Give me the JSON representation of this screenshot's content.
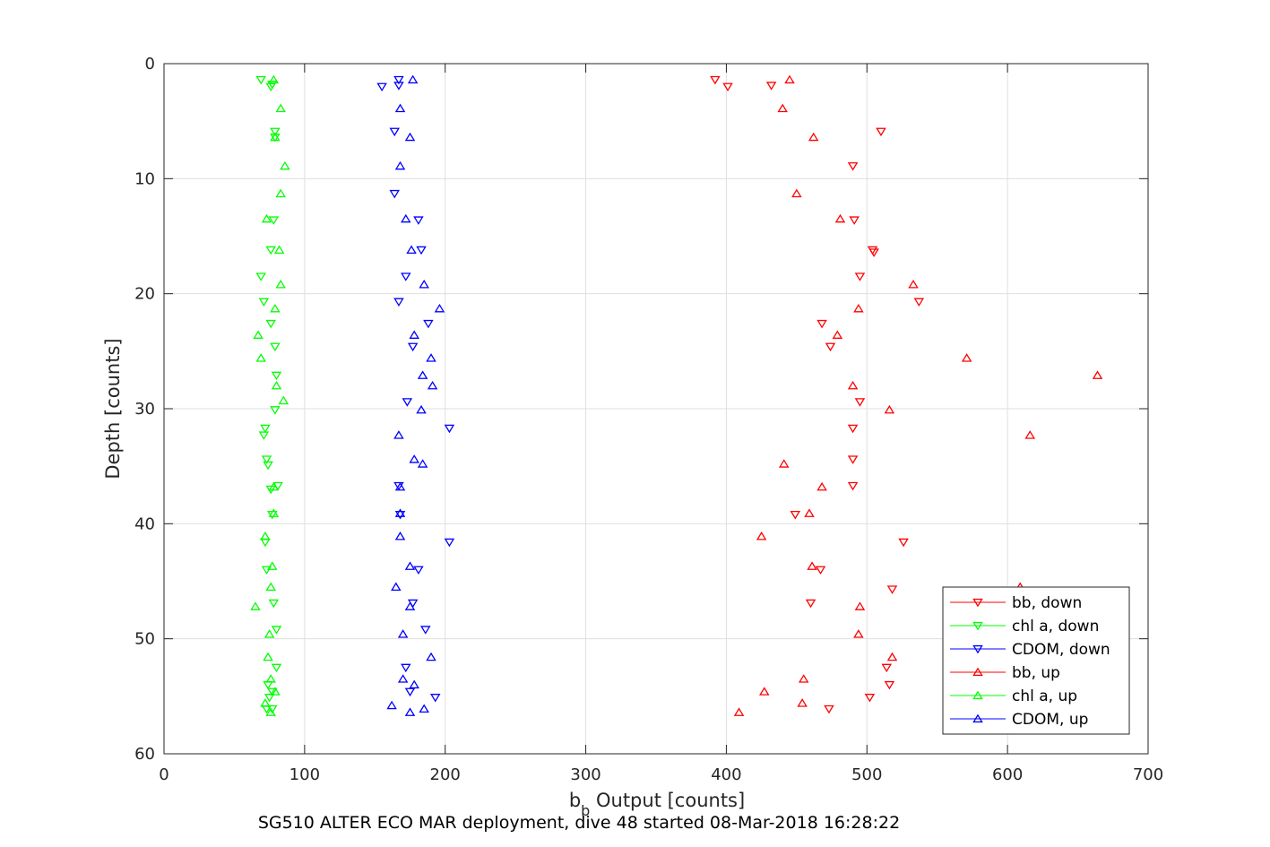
{
  "chart_data": {
    "type": "scatter",
    "xlabel_main": "b",
    "xlabel_sub": "b",
    "xlabel_rest": " Output [counts]",
    "ylabel": "Depth [counts]",
    "footer": "SG510 ALTER ECO MAR deployment, dive 48 started 08-Mar-2018 16:28:22",
    "xlim": [
      0,
      700
    ],
    "ylim": [
      0,
      60
    ],
    "y_reversed": true,
    "grid": true,
    "legend_position": "bottom-right",
    "x_ticks": [
      0,
      100,
      200,
      300,
      400,
      500,
      600,
      700
    ],
    "y_ticks": [
      0,
      10,
      20,
      30,
      40,
      50,
      60
    ],
    "series": [
      {
        "name": "bb, down",
        "color": "#ff0000",
        "marker": "triangle-down",
        "points": [
          [
            392,
            1.4
          ],
          [
            401,
            2.0
          ],
          [
            432,
            1.9
          ],
          [
            510,
            5.9
          ],
          [
            490,
            8.9
          ],
          [
            491,
            13.6
          ],
          [
            504,
            16.2
          ],
          [
            505,
            16.4
          ],
          [
            495,
            18.5
          ],
          [
            537,
            20.7
          ],
          [
            468,
            22.6
          ],
          [
            474,
            24.6
          ],
          [
            495,
            29.4
          ],
          [
            490,
            31.7
          ],
          [
            490,
            34.4
          ],
          [
            490,
            36.7
          ],
          [
            449,
            39.2
          ],
          [
            526,
            41.6
          ],
          [
            467,
            44.0
          ],
          [
            460,
            46.9
          ],
          [
            518,
            45.7
          ],
          [
            514,
            52.5
          ],
          [
            516,
            54.0
          ],
          [
            502,
            55.1
          ],
          [
            473,
            56.1
          ]
        ]
      },
      {
        "name": "chl a, down",
        "color": "#00ff00",
        "marker": "triangle-down",
        "points": [
          [
            69,
            1.4
          ],
          [
            76,
            2.0
          ],
          [
            77,
            1.8
          ],
          [
            79,
            5.9
          ],
          [
            79,
            6.4
          ],
          [
            78,
            13.6
          ],
          [
            76,
            16.2
          ],
          [
            69,
            18.5
          ],
          [
            71,
            20.7
          ],
          [
            76,
            22.6
          ],
          [
            79,
            24.6
          ],
          [
            80,
            27.1
          ],
          [
            79,
            30.1
          ],
          [
            72,
            31.7
          ],
          [
            71,
            32.3
          ],
          [
            73,
            34.4
          ],
          [
            74,
            34.9
          ],
          [
            81,
            36.7
          ],
          [
            76,
            37.0
          ],
          [
            77,
            39.2
          ],
          [
            72,
            41.6
          ],
          [
            73,
            44.0
          ],
          [
            78,
            46.9
          ],
          [
            80,
            49.2
          ],
          [
            80,
            52.5
          ],
          [
            74,
            54.0
          ],
          [
            77,
            54.6
          ],
          [
            75,
            55.1
          ],
          [
            73,
            56.1
          ],
          [
            77,
            56.1
          ]
        ]
      },
      {
        "name": "CDOM, down",
        "color": "#0000ff",
        "marker": "triangle-down",
        "points": [
          [
            167,
            1.4
          ],
          [
            155,
            2.0
          ],
          [
            167,
            1.9
          ],
          [
            164,
            5.9
          ],
          [
            164,
            11.3
          ],
          [
            181,
            13.6
          ],
          [
            183,
            16.2
          ],
          [
            172,
            18.5
          ],
          [
            167,
            20.7
          ],
          [
            188,
            22.6
          ],
          [
            177,
            24.6
          ],
          [
            173,
            29.4
          ],
          [
            203,
            31.7
          ],
          [
            167,
            36.7
          ],
          [
            168,
            39.2
          ],
          [
            203,
            41.6
          ],
          [
            181,
            44.0
          ],
          [
            177,
            46.9
          ],
          [
            186,
            49.2
          ],
          [
            172,
            52.5
          ],
          [
            175,
            54.6
          ],
          [
            193,
            55.1
          ]
        ]
      },
      {
        "name": "bb, up",
        "color": "#ff0000",
        "marker": "triangle-up",
        "points": [
          [
            445,
            1.4
          ],
          [
            440,
            3.9
          ],
          [
            462,
            6.4
          ],
          [
            450,
            11.3
          ],
          [
            481,
            13.5
          ],
          [
            533,
            19.2
          ],
          [
            494,
            21.3
          ],
          [
            479,
            23.6
          ],
          [
            571,
            25.6
          ],
          [
            664,
            27.1
          ],
          [
            490,
            28.0
          ],
          [
            516,
            30.1
          ],
          [
            616,
            32.3
          ],
          [
            441,
            34.8
          ],
          [
            468,
            36.8
          ],
          [
            459,
            39.1
          ],
          [
            425,
            41.1
          ],
          [
            461,
            43.7
          ],
          [
            609,
            45.5
          ],
          [
            495,
            47.2
          ],
          [
            494,
            49.6
          ],
          [
            518,
            51.6
          ],
          [
            455,
            53.5
          ],
          [
            427,
            54.6
          ],
          [
            454,
            55.6
          ],
          [
            409,
            56.4
          ]
        ]
      },
      {
        "name": "chl a, up",
        "color": "#00ff00",
        "marker": "triangle-up",
        "points": [
          [
            78,
            1.4
          ],
          [
            83,
            3.9
          ],
          [
            79,
            6.4
          ],
          [
            86,
            8.9
          ],
          [
            83,
            11.3
          ],
          [
            73,
            13.5
          ],
          [
            82,
            16.2
          ],
          [
            83,
            19.2
          ],
          [
            79,
            21.3
          ],
          [
            67,
            23.6
          ],
          [
            69,
            25.6
          ],
          [
            80,
            28.0
          ],
          [
            85,
            29.3
          ],
          [
            78,
            36.8
          ],
          [
            78,
            39.1
          ],
          [
            72,
            41.1
          ],
          [
            77,
            43.7
          ],
          [
            76,
            45.5
          ],
          [
            65,
            47.2
          ],
          [
            75,
            49.6
          ],
          [
            74,
            51.6
          ],
          [
            76,
            53.5
          ],
          [
            79,
            54.6
          ],
          [
            72,
            55.6
          ],
          [
            76,
            56.4
          ]
        ]
      },
      {
        "name": "CDOM, up",
        "color": "#0000ff",
        "marker": "triangle-up",
        "points": [
          [
            177,
            1.4
          ],
          [
            168,
            3.9
          ],
          [
            175,
            6.4
          ],
          [
            168,
            8.9
          ],
          [
            172,
            13.5
          ],
          [
            176,
            16.2
          ],
          [
            185,
            19.2
          ],
          [
            196,
            21.3
          ],
          [
            178,
            23.6
          ],
          [
            190,
            25.6
          ],
          [
            184,
            27.1
          ],
          [
            191,
            28.0
          ],
          [
            183,
            30.1
          ],
          [
            167,
            32.3
          ],
          [
            178,
            34.4
          ],
          [
            184,
            34.8
          ],
          [
            168,
            36.8
          ],
          [
            168,
            39.1
          ],
          [
            168,
            41.1
          ],
          [
            175,
            43.7
          ],
          [
            165,
            45.5
          ],
          [
            175,
            47.2
          ],
          [
            170,
            49.6
          ],
          [
            190,
            51.6
          ],
          [
            170,
            53.5
          ],
          [
            178,
            54.0
          ],
          [
            185,
            56.1
          ],
          [
            162,
            55.8
          ],
          [
            175,
            56.4
          ]
        ]
      }
    ]
  }
}
